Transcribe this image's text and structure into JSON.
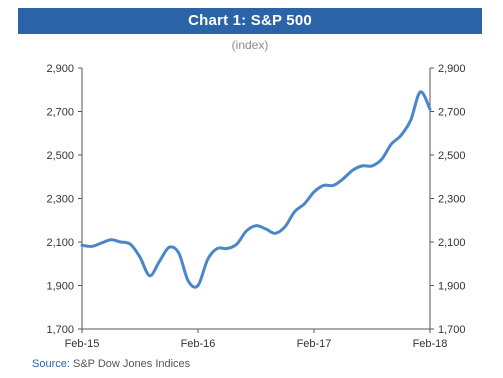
{
  "chart_data": {
    "type": "line",
    "title": "Chart 1: S&P 500",
    "subtitle": "(index)",
    "xlabel": "",
    "ylabel": "",
    "x_ticks": [
      "Feb-15",
      "Feb-16",
      "Feb-17",
      "Feb-18"
    ],
    "y_ticks_left": [
      "2,900",
      "2,700",
      "2,500",
      "2,300",
      "2,100",
      "1,900",
      "1,700"
    ],
    "y_ticks_right": [
      "2,900",
      "2,700",
      "2,500",
      "2,300",
      "2,100",
      "1,900",
      "1,700"
    ],
    "ylim": [
      1700,
      2900
    ],
    "grid": false,
    "legend": "none",
    "series": [
      {
        "color": "#4a87c9",
        "points": [
          {
            "x": "2015-02",
            "y": 2085
          },
          {
            "x": "2015-03",
            "y": 2080
          },
          {
            "x": "2015-04",
            "y": 2095
          },
          {
            "x": "2015-05",
            "y": 2110
          },
          {
            "x": "2015-06",
            "y": 2100
          },
          {
            "x": "2015-07",
            "y": 2090
          },
          {
            "x": "2015-08",
            "y": 2030
          },
          {
            "x": "2015-09",
            "y": 1945
          },
          {
            "x": "2015-10",
            "y": 2010
          },
          {
            "x": "2015-11",
            "y": 2075
          },
          {
            "x": "2015-12",
            "y": 2050
          },
          {
            "x": "2016-01",
            "y": 1920
          },
          {
            "x": "2016-02",
            "y": 1900
          },
          {
            "x": "2016-03",
            "y": 2020
          },
          {
            "x": "2016-04",
            "y": 2070
          },
          {
            "x": "2016-05",
            "y": 2070
          },
          {
            "x": "2016-06",
            "y": 2090
          },
          {
            "x": "2016-07",
            "y": 2150
          },
          {
            "x": "2016-08",
            "y": 2175
          },
          {
            "x": "2016-09",
            "y": 2160
          },
          {
            "x": "2016-10",
            "y": 2140
          },
          {
            "x": "2016-11",
            "y": 2170
          },
          {
            "x": "2016-12",
            "y": 2240
          },
          {
            "x": "2017-01",
            "y": 2275
          },
          {
            "x": "2017-02",
            "y": 2330
          },
          {
            "x": "2017-03",
            "y": 2360
          },
          {
            "x": "2017-04",
            "y": 2360
          },
          {
            "x": "2017-05",
            "y": 2390
          },
          {
            "x": "2017-06",
            "y": 2430
          },
          {
            "x": "2017-07",
            "y": 2450
          },
          {
            "x": "2017-08",
            "y": 2450
          },
          {
            "x": "2017-09",
            "y": 2480
          },
          {
            "x": "2017-10",
            "y": 2550
          },
          {
            "x": "2017-11",
            "y": 2590
          },
          {
            "x": "2017-12",
            "y": 2660
          },
          {
            "x": "2018-01",
            "y": 2790
          },
          {
            "x": "2018-02",
            "y": 2710
          }
        ]
      }
    ]
  },
  "source": {
    "label": "Source:",
    "text": "S&P Dow Jones Indices"
  }
}
